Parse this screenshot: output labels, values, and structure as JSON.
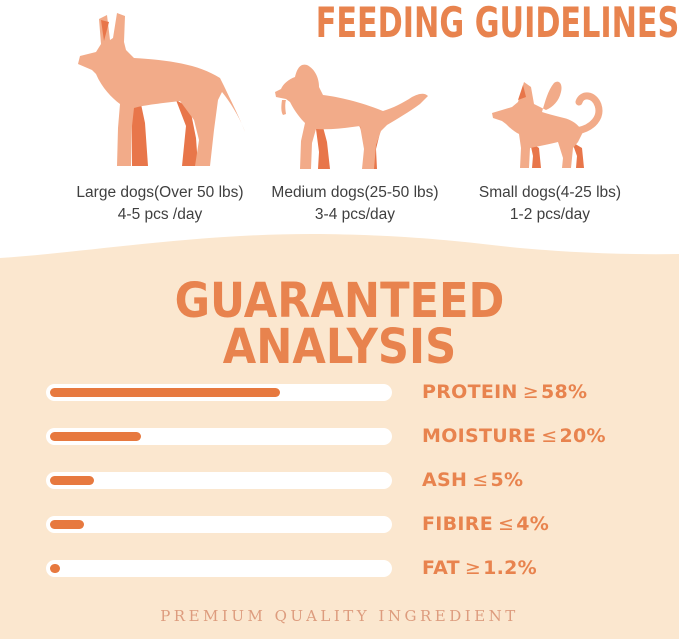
{
  "colors": {
    "accent": "#E8834E",
    "bar_fill": "#E7793F",
    "bar_track": "#FFFFFF",
    "section_bg": "#FBE7CF",
    "dog_body": "#F2AB89",
    "dog_accent": "#E8764A",
    "label_text": "#3F3F3F",
    "footer_text": "#DD9C7E"
  },
  "feeding": {
    "title": "FEEDING GUIDELINES",
    "dogs": [
      {
        "icon": "large-dog-icon",
        "label": "Large dogs(Over 50 lbs)",
        "amount": "4-5 pcs /day"
      },
      {
        "icon": "medium-dog-icon",
        "label": "Medium dogs(25-50 lbs)",
        "amount": "3-4 pcs/day"
      },
      {
        "icon": "small-dog-icon",
        "label": "Small dogs(4-25 lbs)",
        "amount": "1-2 pcs/day"
      }
    ]
  },
  "analysis": {
    "title_line1": "GUARANTEED",
    "title_line2": "ANALYSIS",
    "rows": [
      {
        "label": "PROTEIN",
        "comparator": "≥",
        "value": "58%",
        "bar_percent": 68
      },
      {
        "label": "MOISTURE",
        "comparator": "≤",
        "value": "20%",
        "bar_percent": 27
      },
      {
        "label": "ASH",
        "comparator": "≤",
        "value": "5%",
        "bar_percent": 13
      },
      {
        "label": "FIBIRE",
        "comparator": "≤",
        "value": "4%",
        "bar_percent": 10
      },
      {
        "label": "FAT",
        "comparator": "≥",
        "value": "1.2%",
        "bar_percent": 3
      }
    ]
  },
  "chart_data": {
    "type": "bar",
    "title": "GUARANTEED ANALYSIS",
    "categories": [
      "PROTEIN",
      "MOISTURE",
      "ASH",
      "FIBIRE",
      "FAT"
    ],
    "values": [
      68,
      27,
      13,
      10,
      3
    ],
    "value_labels": [
      "≥58%",
      "≤20%",
      "≤5%",
      "≤4%",
      "≥1.2%"
    ],
    "xlabel": "",
    "ylabel": "",
    "ylim": [
      0,
      100
    ],
    "legend": false,
    "grid": false,
    "orientation": "horizontal"
  },
  "footer": "PREMIUM QUALITY INGREDIENT"
}
